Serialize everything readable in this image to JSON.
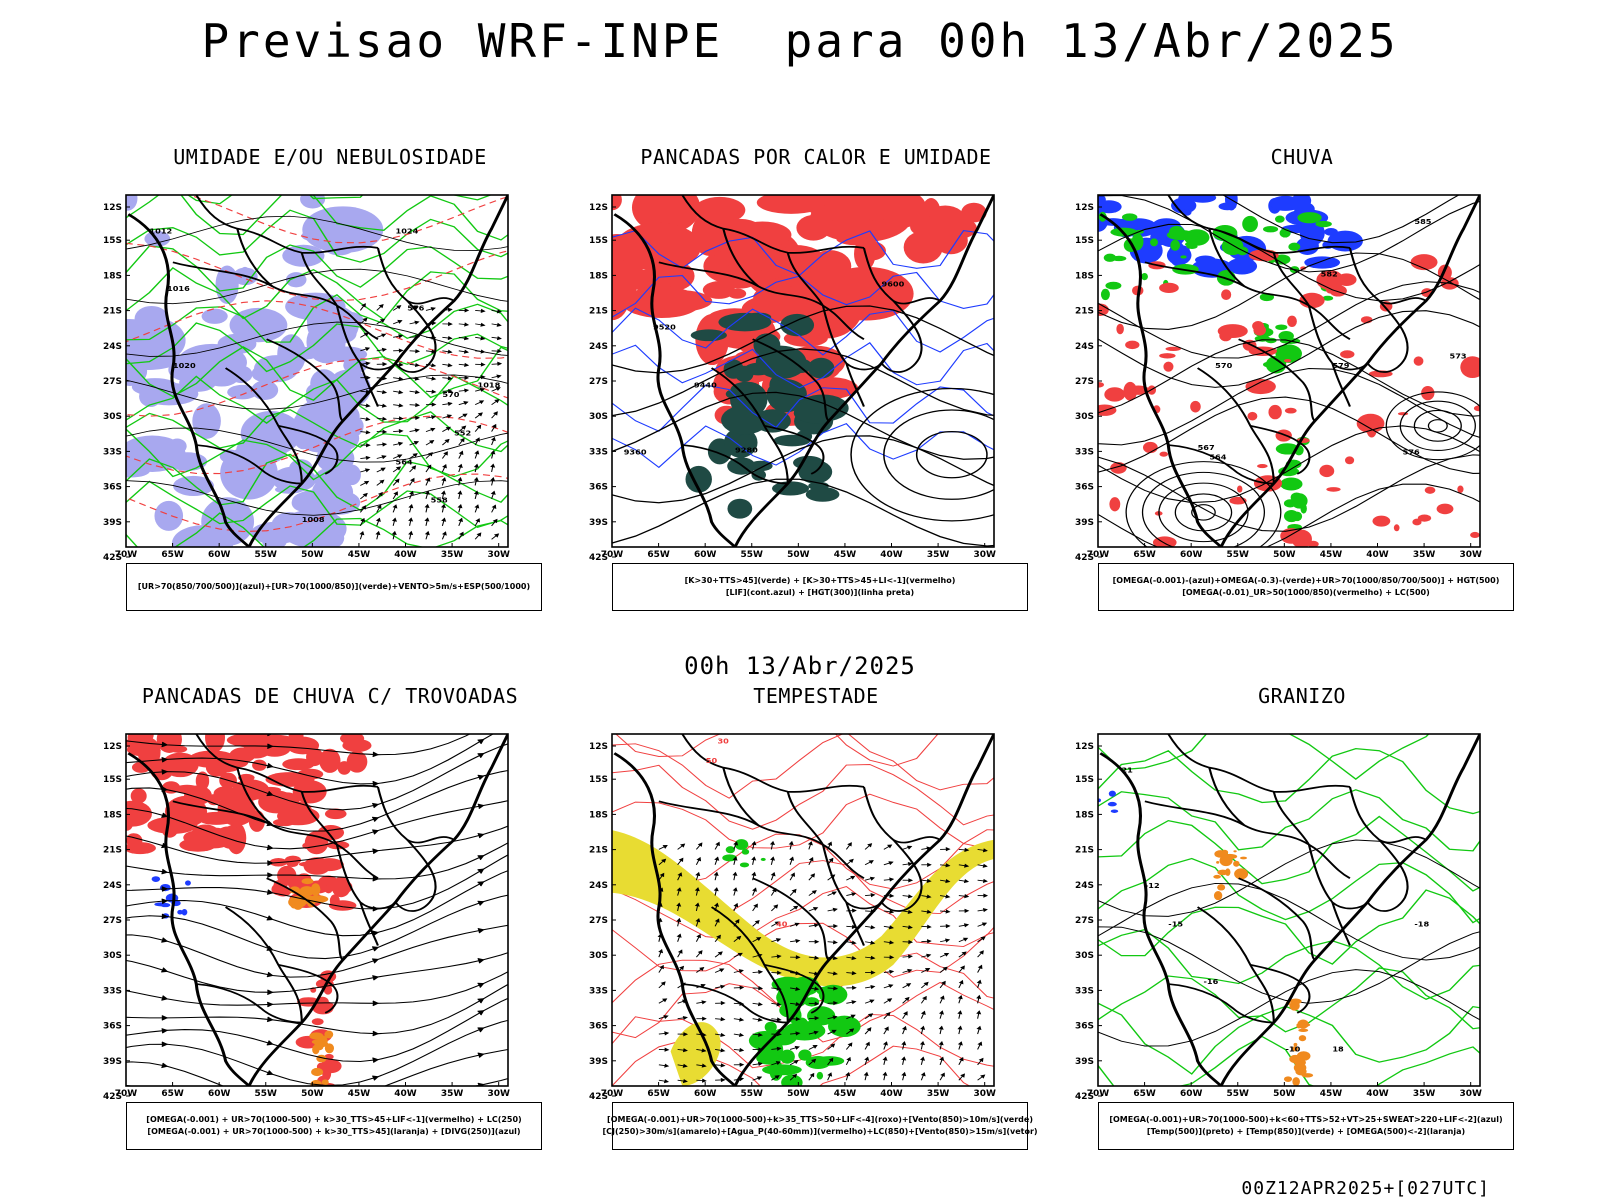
{
  "title": "Previsao WRF-INPE  para 00h 13/Abr/2025",
  "subtitle": "00h 13/Abr/2025",
  "footer": "00Z12APR2025+[027UTC]",
  "axes": {
    "lat_ticks": [
      "12S",
      "15S",
      "18S",
      "21S",
      "24S",
      "27S",
      "30S",
      "33S",
      "36S",
      "39S",
      "42S"
    ],
    "lon_ticks": [
      "70W",
      "65W",
      "60W",
      "55W",
      "50W",
      "45W",
      "40W",
      "35W",
      "30W"
    ]
  },
  "colors": {
    "umid_azul": "#a8a8ef",
    "verde": "#12c812",
    "vermelho": "#f04040",
    "azul": "#1e3cff",
    "laranja": "#f08a1e",
    "amarelo": "#e8dc32",
    "verde_escuro": "#1f4a44",
    "preto": "#000000"
  },
  "panels": [
    {
      "id": "umidade",
      "title": "UMIDADE E/OU NEBULOSIDADE",
      "legend": [
        "[UR>70(850/700/500)](azul)+[UR>70(1000/850)](verde)+VENTO>5m/s+ESP(500/1000)"
      ],
      "contour_labels": [
        "1012",
        "1016",
        "1020",
        "1024",
        "576",
        "570",
        "564",
        "558",
        "552",
        "1018",
        "1008"
      ]
    },
    {
      "id": "pancadas_calor",
      "title": "PANCADAS POR CALOR E UMIDADE",
      "legend": [
        "[K>30+TTS>45](verde) + [K>30+TTS>45+LI<-1](vermelho)",
        "[LIF](cont.azul) + [HGT(300)](linha preta)"
      ],
      "contour_labels": [
        "9600",
        "9520",
        "9440",
        "9360",
        "9280"
      ]
    },
    {
      "id": "chuva",
      "title": "CHUVA",
      "legend": [
        "[OMEGA(-0.001)-(azul)+OMEGA(-0.3)-(verde)+UR>70(1000/850/700/500)] + HGT(500)",
        "[OMEGA(-0.01)_UR>50(1000/850)(vermelho) + LC(500)"
      ],
      "contour_labels": [
        "585",
        "582",
        "579",
        "576",
        "573",
        "570",
        "567",
        "564"
      ]
    },
    {
      "id": "pancadas_trovoadas",
      "title": "PANCADAS DE CHUVA C/ TROVOADAS",
      "legend": [
        "[OMEGA(-0.001) + UR>70(1000-500) + k>30_TTS>45+LIF<-1](vermelho) + LC(250)",
        "[OMEGA(-0.001) + UR>70(1000-500) + k>30_TTS>45](laranja) + [DIVG(250)](azul)"
      ],
      "contour_labels": []
    },
    {
      "id": "tempestade",
      "title": "TEMPESTADE",
      "legend": [
        "[OMEGA(-0.001)+UR>70(1000-500)+k>35_TTS>50+LIF<-4](roxo)+[Vento(850)>10m/s](verde)",
        "[CJ(250)>30m/s](amarelo)+[Agua_P(40-60mm)](vermelho)+LC(850)+[Vento(850)>15m/s](vetor)"
      ],
      "contour_labels": [
        "50",
        "40",
        "30"
      ]
    },
    {
      "id": "granizo",
      "title": "GRANIZO",
      "legend": [
        "[OMEGA(-0.001)+UR>70(1000-500)+k<60+TTS>52+VT>25+SWEAT>220+LIF<-2](azul)",
        "[Temp(500)](preto) + [Temp(850)](verde) + [OMEGA(500)<-2](laranja)"
      ],
      "contour_labels": [
        "-12",
        "-15",
        "-18",
        "-16",
        "-10",
        "21",
        "18"
      ]
    }
  ]
}
